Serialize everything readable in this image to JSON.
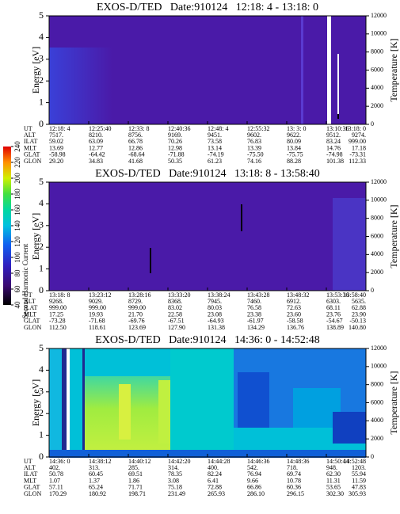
{
  "chart_data": [
    {
      "type": "spectrogram",
      "title": "EXOS-D/TED   Date:910124   12:18: 4 - 13:18: 0",
      "ylabel": "Energy [eV]",
      "y2label": "Temperature [K]",
      "ylim": [
        0,
        5
      ],
      "yticks": [
        0,
        1,
        2,
        3,
        4,
        5
      ],
      "y2lim": [
        0,
        12000
      ],
      "y2ticks": [
        0,
        2000,
        4000,
        6000,
        8000,
        10000,
        12000
      ],
      "ephemeris": {
        "labels": [
          "UT",
          "ALT",
          "ILAT",
          "MLT",
          "GLAT",
          "GLON"
        ],
        "rows": [
          [
            "12:18: 4",
            "12:25:40",
            "12:33: 8",
            "12:40:36",
            "12:48: 4",
            "12:55:32",
            "13: 3: 0",
            "13:10:36",
            "13:18: 0"
          ],
          [
            "7517.",
            "8210.",
            "8756.",
            "9169.",
            "9451.",
            "9602.",
            "9622.",
            "9512.",
            "9274."
          ],
          [
            "59.02",
            "63.09",
            "66.78",
            "70.26",
            "73.58",
            "76.83",
            "80.09",
            "83.24",
            "999.00"
          ],
          [
            "13.69",
            "12.77",
            "12.86",
            "12.98",
            "13.14",
            "13.39",
            "13.84",
            "14.76",
            "17.18"
          ],
          [
            "-58.98",
            "-64.42",
            "-68.64",
            "-71.88",
            "-74.19",
            "-75.50",
            "-75.75",
            "-74.98",
            "-73.31"
          ],
          [
            "29.20",
            "34.83",
            "41.68",
            "50.35",
            "61.23",
            "74.16",
            "88.28",
            "101.38",
            "112.33"
          ]
        ]
      }
    },
    {
      "type": "spectrogram",
      "title": "EXOS-D/TED   Date:910124   13:18: 8 - 13:58:40",
      "ylabel": "Energy [eV]",
      "y2label": "Temperature [K]",
      "ylim": [
        0,
        5
      ],
      "yticks": [
        0,
        1,
        2,
        3,
        4,
        5
      ],
      "y2lim": [
        0,
        12000
      ],
      "y2ticks": [
        0,
        2000,
        4000,
        6000,
        8000,
        10000,
        12000
      ],
      "ephemeris": {
        "labels": [
          "UT",
          "ALT",
          "ILAT",
          "MLT",
          "GLAT",
          "GLON"
        ],
        "rows": [
          [
            "13:18: 8",
            "13:23:12",
            "13:28:16",
            "13:33:20",
            "13:38:24",
            "13:43:28",
            "13:48:32",
            "13:53:36",
            "13:58:40"
          ],
          [
            "9268.",
            "9029.",
            "8729.",
            "8368.",
            "7945.",
            "7460.",
            "6912.",
            "6303.",
            "5635."
          ],
          [
            "999.00",
            "999.00",
            "999.00",
            "83.02",
            "80.03",
            "76.58",
            "72.63",
            "68.11",
            "62.88"
          ],
          [
            "17.25",
            "19.93",
            "21.70",
            "22.58",
            "23.08",
            "23.38",
            "23.60",
            "23.76",
            "23.90"
          ],
          [
            "-73.28",
            "-71.68",
            "-69.76",
            "-67.51",
            "-64.93",
            "-61.97",
            "-58.58",
            "-54.67",
            "-50.13"
          ],
          [
            "112.50",
            "118.61",
            "123.69",
            "127.90",
            "131.38",
            "134.29",
            "136.76",
            "138.89",
            "140.80"
          ]
        ]
      }
    },
    {
      "type": "spectrogram",
      "title": "EXOS-D/TED   Date:910124   14:36: 0 - 14:52:48",
      "ylabel": "Energy [eV]",
      "y2label": "Temperature [K]",
      "ylim": [
        0,
        5
      ],
      "yticks": [
        0,
        1,
        2,
        3,
        4,
        5
      ],
      "y2lim": [
        0,
        12000
      ],
      "y2ticks": [
        0,
        2000,
        4000,
        6000,
        8000,
        10000,
        12000
      ],
      "ephemeris": {
        "labels": [
          "UT",
          "ALT",
          "ILAT",
          "MLT",
          "GLAT",
          "GLON"
        ],
        "rows": [
          [
            "14:36: 0",
            "14:38:12",
            "14:40:12",
            "14:42:20",
            "14:44:28",
            "14:46:36",
            "14:48:36",
            "14:50:44",
            "14:52:48"
          ],
          [
            "402.",
            "313.",
            "285.",
            "314.",
            "400.",
            "542.",
            "718.",
            "948.",
            "1203."
          ],
          [
            "50.78",
            "60.45",
            "69.51",
            "78.35",
            "82.24",
            "76.94",
            "69.74",
            "62.30",
            "55.94"
          ],
          [
            "1.07",
            "1.37",
            "1.86",
            "3.08",
            "6.41",
            "9.66",
            "10.78",
            "11.31",
            "11.59"
          ],
          [
            "57.11",
            "65.24",
            "71.71",
            "75.18",
            "72.88",
            "66.86",
            "60.36",
            "53.65",
            "47.83"
          ],
          [
            "170.29",
            "180.92",
            "198.71",
            "231.49",
            "265.93",
            "286.10",
            "296.15",
            "302.30",
            "305.93"
          ]
        ]
      }
    }
  ],
  "colorbar": {
    "label": "Second Harmonic Current",
    "lim": [
      40,
      240
    ],
    "ticks": [
      40,
      60,
      80,
      100,
      120,
      140,
      160,
      180,
      200,
      220,
      240
    ]
  }
}
